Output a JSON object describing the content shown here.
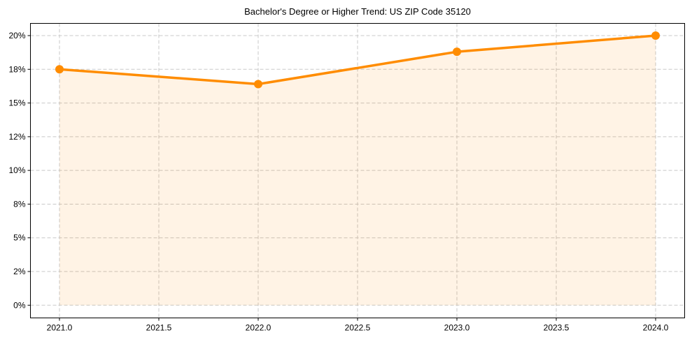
{
  "chart_data": {
    "type": "line",
    "title": "Bachelor's Degree or Higher Trend: US ZIP Code 35120",
    "xlabel": "",
    "ylabel": "",
    "x": [
      2021,
      2022,
      2023,
      2024
    ],
    "series": [
      {
        "name": "Bachelor's Degree or Higher",
        "values": [
          17.5,
          16.4,
          18.8,
          20.0
        ],
        "color": "#ff8c00",
        "fill": true,
        "fill_color": "#ff8c00",
        "fill_alpha": 0.1
      }
    ],
    "xlim": [
      2020.85,
      2024.15
    ],
    "ylim": [
      -1.0,
      20.9
    ],
    "x_ticks": [
      2021.0,
      2021.5,
      2022.0,
      2022.5,
      2023.0,
      2023.5,
      2024.0
    ],
    "x_tick_labels": [
      "2021.0",
      "2021.5",
      "2022.0",
      "2022.5",
      "2023.0",
      "2023.5",
      "2024.0"
    ],
    "y_ticks": [
      0,
      2.5,
      5,
      7.5,
      10,
      12.5,
      15,
      17.5,
      20
    ],
    "y_tick_labels": [
      "0%",
      "2%",
      "5%",
      "8%",
      "10%",
      "12%",
      "15%",
      "18%",
      "20%"
    ],
    "grid": true,
    "grid_style": "dashed",
    "legend": null
  }
}
